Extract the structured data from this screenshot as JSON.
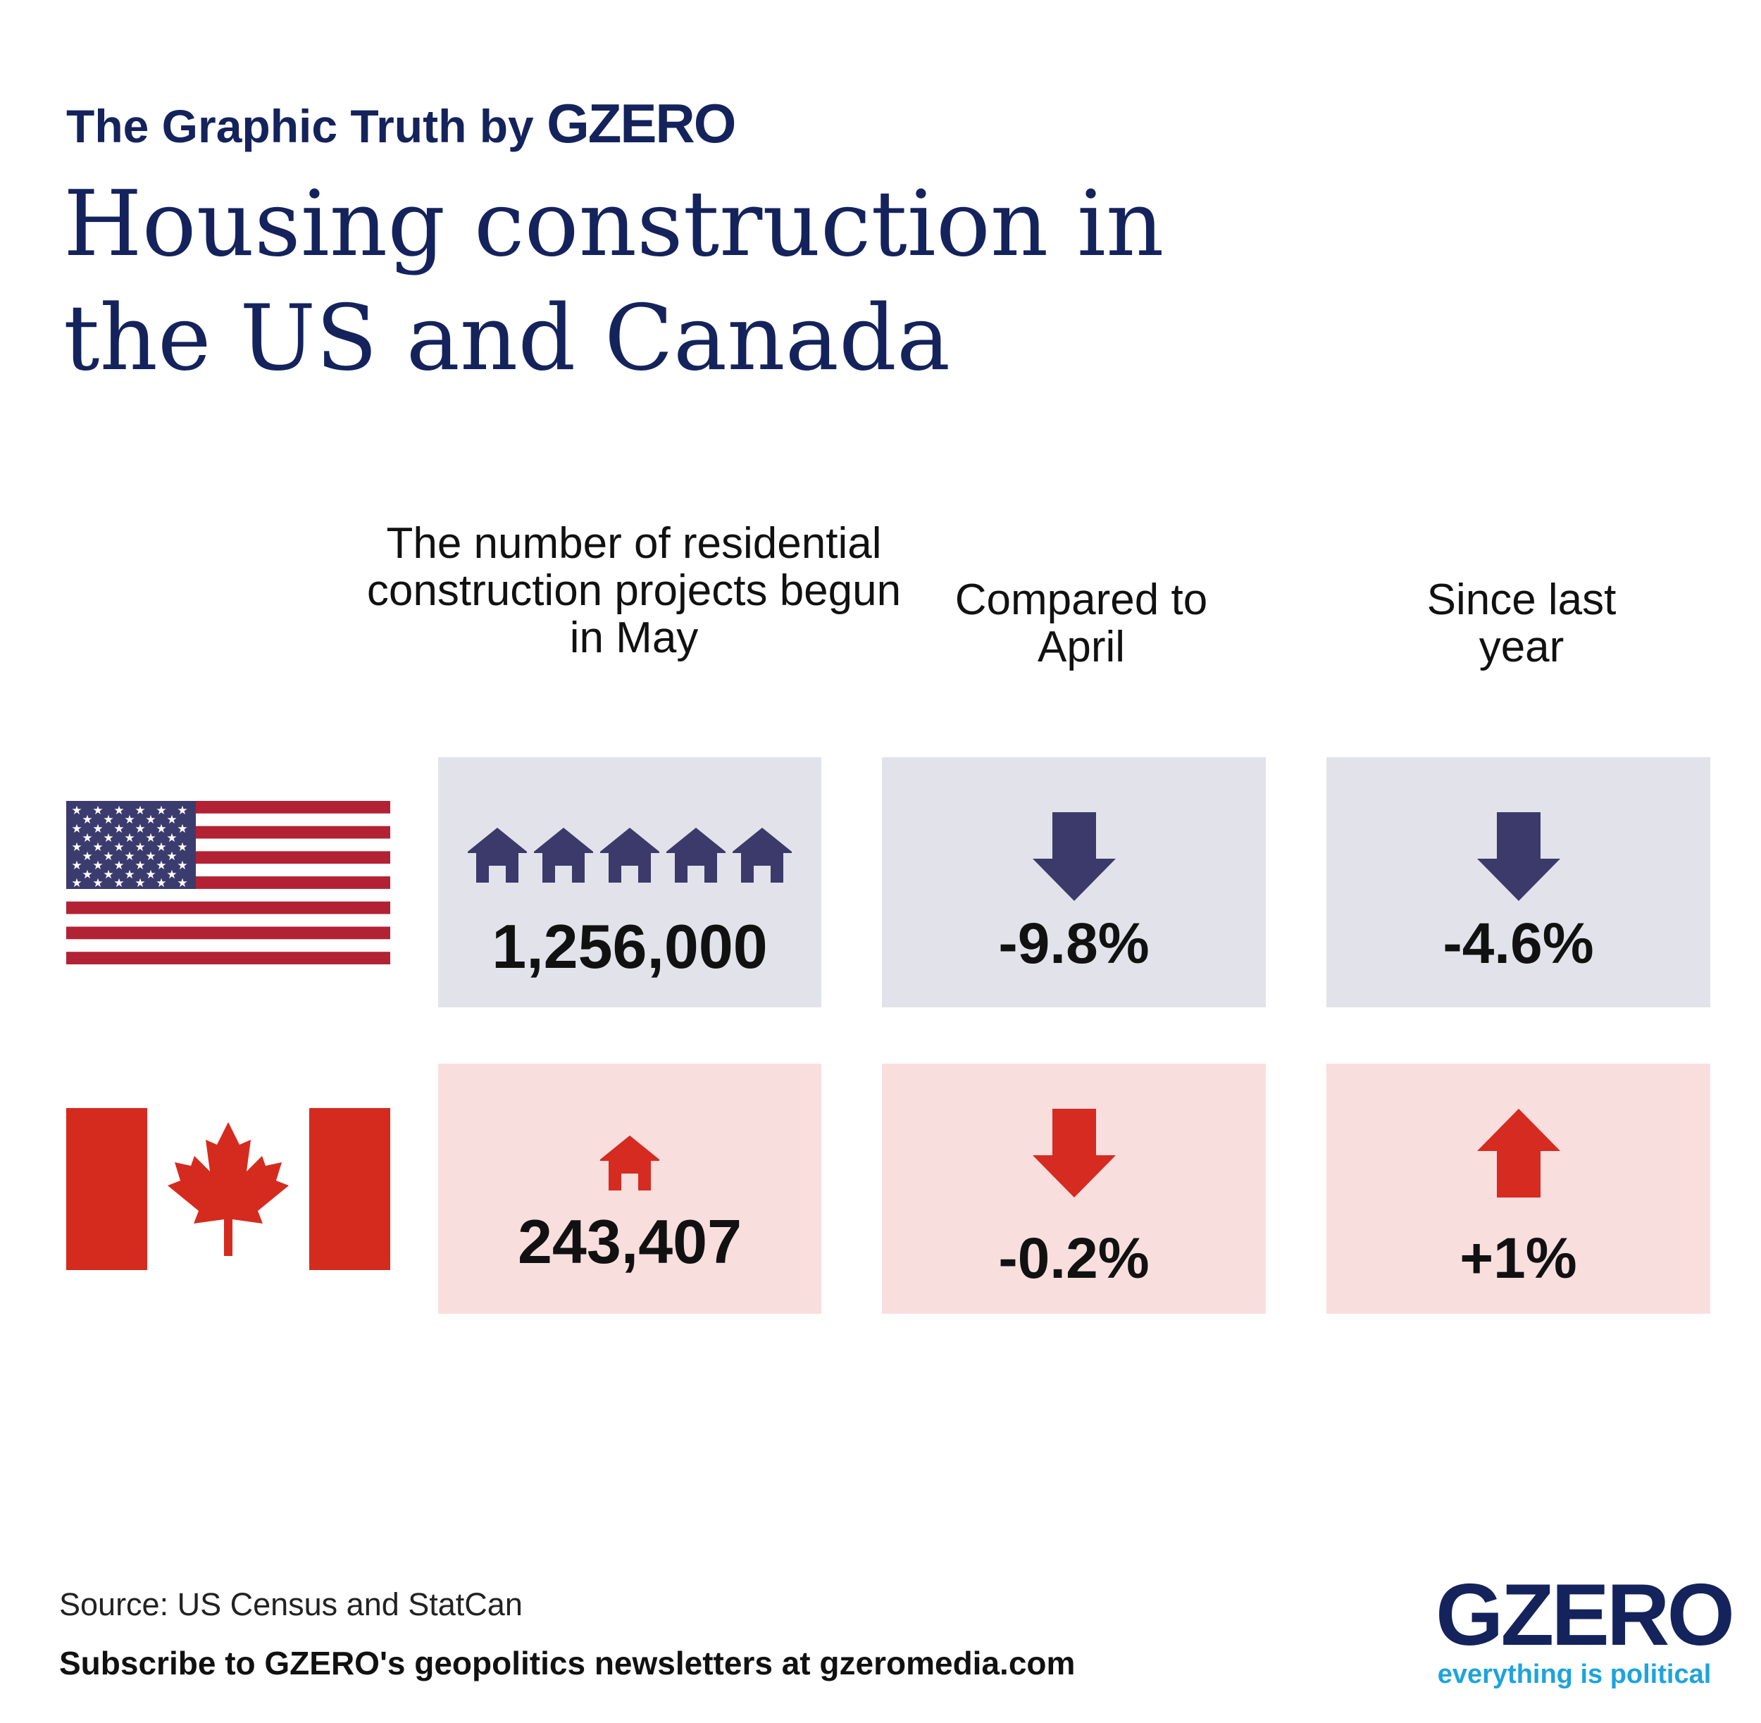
{
  "header": {
    "kicker": "The Graphic Truth by",
    "kicker_brand": "GZERO",
    "title": "Housing construction in the US and Canada"
  },
  "columns": [
    "The number of residential construction projects begun in May",
    "Compared to April",
    "Since last year"
  ],
  "rows": [
    {
      "country": "US",
      "flag_icon": "us-flag-icon",
      "house_icon_count": 5,
      "projects": "1,256,000",
      "vs_april": "-9.8%",
      "vs_april_direction": "down",
      "vs_last_year": "-4.6%",
      "vs_last_year_direction": "down",
      "color": "#3c3a6b"
    },
    {
      "country": "Canada",
      "flag_icon": "canada-flag-icon",
      "house_icon_count": 1,
      "projects": "243,407",
      "vs_april": "-0.2%",
      "vs_april_direction": "down",
      "vs_last_year": "+1%",
      "vs_last_year_direction": "up",
      "color": "#d62b20"
    }
  ],
  "footer": {
    "source": "Source: US Census and StatCan",
    "subscribe": "Subscribe to GZERO's geopolitics newsletters at gzeromedia.com",
    "logo_name": "GZERO",
    "logo_tagline": "everything is political"
  },
  "colors": {
    "navy": "#14235c",
    "us_cell": "#e2e3ea",
    "ca_cell": "#f9dede",
    "us_icon": "#3c3a6b",
    "ca_icon": "#d62b20",
    "tagline": "#1ea3dc"
  }
}
